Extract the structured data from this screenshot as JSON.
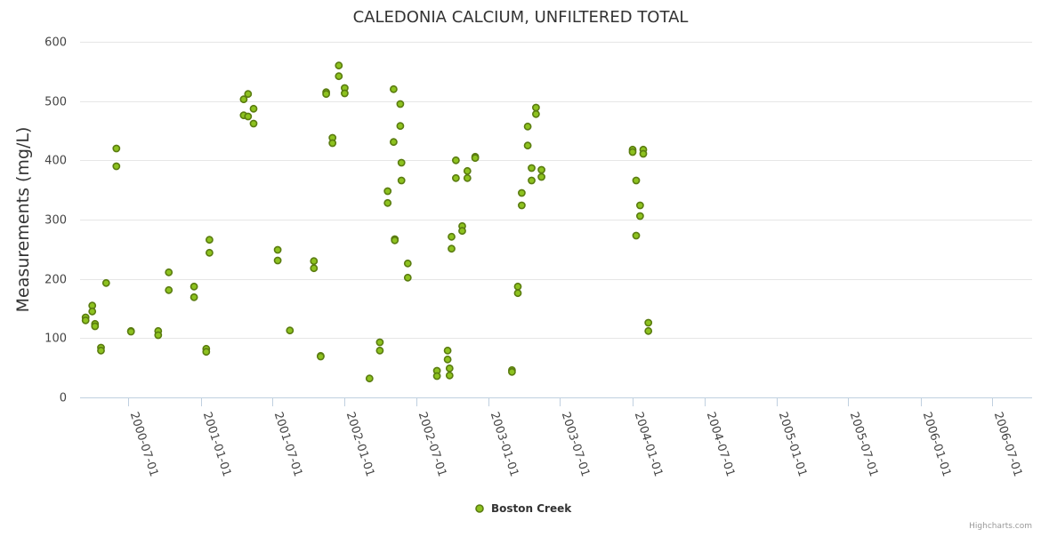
{
  "chart_data": {
    "type": "scatter",
    "title": "CALEDONIA CALCIUM, UNFILTERED TOTAL",
    "xlabel": "",
    "ylabel": "Measurements (mg/L)",
    "ylim": [
      0,
      600
    ],
    "y_ticks": [
      0,
      100,
      200,
      300,
      400,
      500,
      600
    ],
    "xlim": [
      "2000-03-01",
      "2006-10-10"
    ],
    "x_ticks": [
      "2000-07-01",
      "2001-01-01",
      "2001-07-01",
      "2002-01-01",
      "2002-07-01",
      "2003-01-01",
      "2003-07-01",
      "2004-01-01",
      "2004-07-01",
      "2005-01-01",
      "2005-07-01",
      "2006-01-01",
      "2006-07-01"
    ],
    "grid": true,
    "legend": {
      "position": "bottom-center"
    },
    "credits": "Highcharts.com",
    "series": [
      {
        "name": "Boston Creek",
        "color": "#8dc21f",
        "stroke": "#5a7c10",
        "points": [
          {
            "x": "2000-03-15",
            "y": 135
          },
          {
            "x": "2000-03-15",
            "y": 130
          },
          {
            "x": "2000-04-01",
            "y": 155
          },
          {
            "x": "2000-04-01",
            "y": 145
          },
          {
            "x": "2000-04-08",
            "y": 124
          },
          {
            "x": "2000-04-08",
            "y": 120
          },
          {
            "x": "2000-04-23",
            "y": 84
          },
          {
            "x": "2000-04-23",
            "y": 79
          },
          {
            "x": "2000-05-06",
            "y": 193
          },
          {
            "x": "2000-06-01",
            "y": 420
          },
          {
            "x": "2000-06-01",
            "y": 390
          },
          {
            "x": "2000-07-08",
            "y": 112
          },
          {
            "x": "2000-07-08",
            "y": 111
          },
          {
            "x": "2000-09-15",
            "y": 112
          },
          {
            "x": "2000-09-15",
            "y": 105
          },
          {
            "x": "2000-10-12",
            "y": 211
          },
          {
            "x": "2000-10-12",
            "y": 181
          },
          {
            "x": "2000-12-15",
            "y": 187
          },
          {
            "x": "2000-12-15",
            "y": 169
          },
          {
            "x": "2001-01-15",
            "y": 82
          },
          {
            "x": "2001-01-15",
            "y": 77
          },
          {
            "x": "2001-01-23",
            "y": 266
          },
          {
            "x": "2001-01-23",
            "y": 244
          },
          {
            "x": "2001-04-20",
            "y": 503
          },
          {
            "x": "2001-04-20",
            "y": 476
          },
          {
            "x": "2001-05-01",
            "y": 512
          },
          {
            "x": "2001-05-01",
            "y": 474
          },
          {
            "x": "2001-05-15",
            "y": 487
          },
          {
            "x": "2001-05-15",
            "y": 462
          },
          {
            "x": "2001-07-15",
            "y": 249
          },
          {
            "x": "2001-07-15",
            "y": 231
          },
          {
            "x": "2001-08-15",
            "y": 113
          },
          {
            "x": "2001-10-15",
            "y": 230
          },
          {
            "x": "2001-10-15",
            "y": 218
          },
          {
            "x": "2001-11-01",
            "y": 70
          },
          {
            "x": "2001-11-01",
            "y": 69
          },
          {
            "x": "2001-11-15",
            "y": 515
          },
          {
            "x": "2001-11-15",
            "y": 512
          },
          {
            "x": "2001-12-01",
            "y": 438
          },
          {
            "x": "2001-12-01",
            "y": 429
          },
          {
            "x": "2001-12-17",
            "y": 560
          },
          {
            "x": "2001-12-17",
            "y": 542
          },
          {
            "x": "2002-01-01",
            "y": 522
          },
          {
            "x": "2002-01-01",
            "y": 513
          },
          {
            "x": "2002-03-05",
            "y": 32
          },
          {
            "x": "2002-03-31",
            "y": 93
          },
          {
            "x": "2002-03-31",
            "y": 79
          },
          {
            "x": "2002-04-20",
            "y": 348
          },
          {
            "x": "2002-04-20",
            "y": 328
          },
          {
            "x": "2002-05-05",
            "y": 520
          },
          {
            "x": "2002-05-05",
            "y": 431
          },
          {
            "x": "2002-05-08",
            "y": 267
          },
          {
            "x": "2002-05-08",
            "y": 265
          },
          {
            "x": "2002-05-22",
            "y": 495
          },
          {
            "x": "2002-05-22",
            "y": 458
          },
          {
            "x": "2002-05-25",
            "y": 396
          },
          {
            "x": "2002-05-25",
            "y": 366
          },
          {
            "x": "2002-06-10",
            "y": 226
          },
          {
            "x": "2002-06-10",
            "y": 202
          },
          {
            "x": "2002-08-23",
            "y": 45
          },
          {
            "x": "2002-08-23",
            "y": 36
          },
          {
            "x": "2002-09-19",
            "y": 79
          },
          {
            "x": "2002-09-19",
            "y": 64
          },
          {
            "x": "2002-09-24",
            "y": 49
          },
          {
            "x": "2002-09-24",
            "y": 37
          },
          {
            "x": "2002-09-29",
            "y": 271
          },
          {
            "x": "2002-09-29",
            "y": 251
          },
          {
            "x": "2002-10-10",
            "y": 400
          },
          {
            "x": "2002-10-10",
            "y": 370
          },
          {
            "x": "2002-10-26",
            "y": 289
          },
          {
            "x": "2002-10-26",
            "y": 281
          },
          {
            "x": "2002-11-08",
            "y": 382
          },
          {
            "x": "2002-11-08",
            "y": 370
          },
          {
            "x": "2002-11-28",
            "y": 406
          },
          {
            "x": "2002-11-28",
            "y": 404
          },
          {
            "x": "2003-03-01",
            "y": 46
          },
          {
            "x": "2003-03-01",
            "y": 43
          },
          {
            "x": "2003-03-16",
            "y": 187
          },
          {
            "x": "2003-03-16",
            "y": 176
          },
          {
            "x": "2003-03-26",
            "y": 345
          },
          {
            "x": "2003-03-26",
            "y": 324
          },
          {
            "x": "2003-04-10",
            "y": 457
          },
          {
            "x": "2003-04-10",
            "y": 425
          },
          {
            "x": "2003-04-20",
            "y": 387
          },
          {
            "x": "2003-04-20",
            "y": 366
          },
          {
            "x": "2003-05-01",
            "y": 489
          },
          {
            "x": "2003-05-01",
            "y": 478
          },
          {
            "x": "2003-05-15",
            "y": 384
          },
          {
            "x": "2003-05-15",
            "y": 372
          },
          {
            "x": "2004-01-01",
            "y": 418
          },
          {
            "x": "2004-01-01",
            "y": 414
          },
          {
            "x": "2004-01-10",
            "y": 366
          },
          {
            "x": "2004-01-10",
            "y": 273
          },
          {
            "x": "2004-01-20",
            "y": 324
          },
          {
            "x": "2004-01-20",
            "y": 306
          },
          {
            "x": "2004-01-28",
            "y": 418
          },
          {
            "x": "2004-01-28",
            "y": 411
          },
          {
            "x": "2004-02-10",
            "y": 126
          },
          {
            "x": "2004-02-10",
            "y": 112
          }
        ]
      }
    ]
  }
}
